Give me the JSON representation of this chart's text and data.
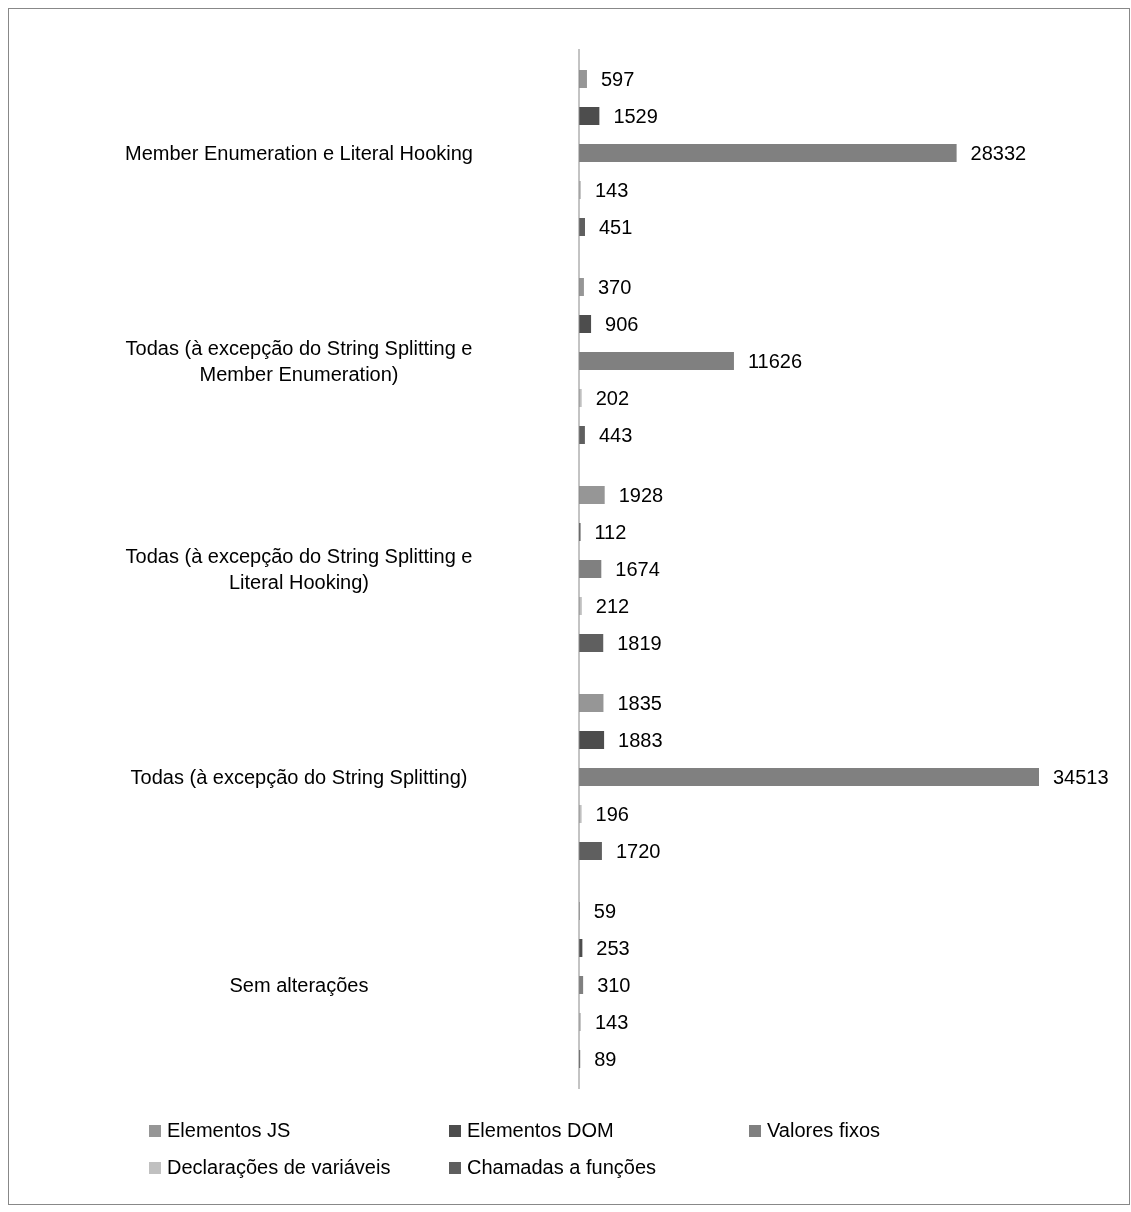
{
  "chart_data": {
    "type": "bar",
    "orientation": "horizontal",
    "data_labels": true,
    "legend": "bottom",
    "categories": [
      "Member Enumeration e Literal Hooking",
      "Todas (à excepção do String Splitting e Member Enumeration)",
      "Todas (à excepção do String Splitting e Literal Hooking)",
      "Todas (à excepção do String Splitting)",
      "Sem alterações"
    ],
    "series": [
      {
        "name": "Elementos JS",
        "color": "#969696",
        "values": [
          597,
          370,
          1928,
          1835,
          59
        ]
      },
      {
        "name": "Elementos DOM",
        "color": "#4d4d4d",
        "values": [
          1529,
          906,
          112,
          1883,
          253
        ]
      },
      {
        "name": "Valores fixos",
        "color": "#808080",
        "values": [
          28332,
          11626,
          1674,
          34513,
          310
        ]
      },
      {
        "name": "Declarações de variáveis",
        "color": "#c0c0c0",
        "values": [
          143,
          202,
          212,
          196,
          143
        ]
      },
      {
        "name": "Chamadas a funções",
        "color": "#5f5f5f",
        "values": [
          451,
          443,
          1819,
          1720,
          89
        ]
      }
    ]
  }
}
